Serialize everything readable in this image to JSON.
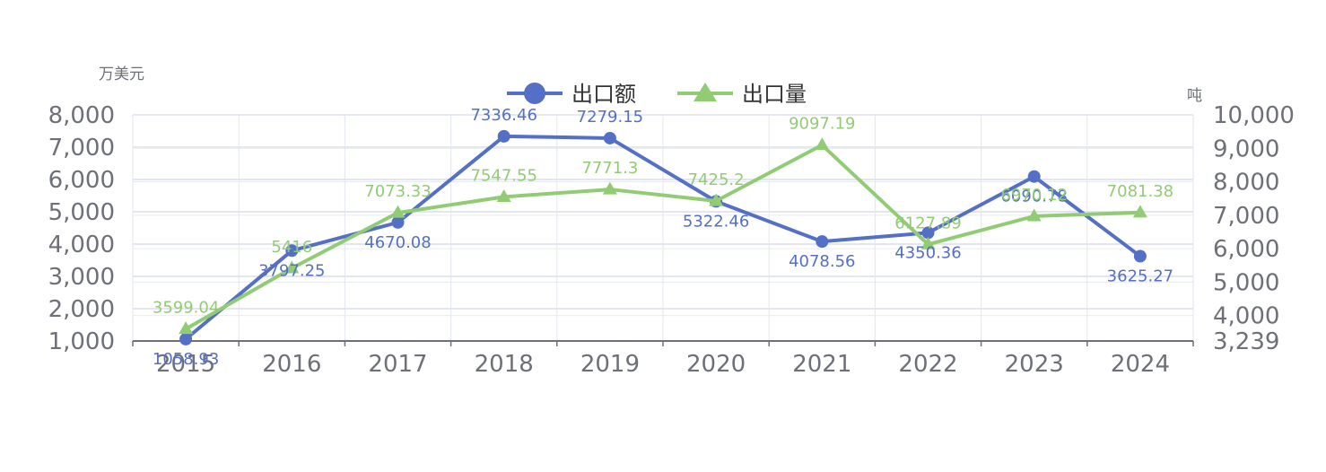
{
  "chart_data": {
    "type": "line",
    "categories": [
      "2015",
      "2016",
      "2017",
      "2018",
      "2019",
      "2020",
      "2021",
      "2022",
      "2023",
      "2024"
    ],
    "y_left": {
      "unit": "万美元",
      "min": 1000,
      "max": 8000,
      "ticks": [
        1000,
        2000,
        3000,
        4000,
        5000,
        6000,
        7000,
        8000
      ]
    },
    "y_right": {
      "unit": "吨",
      "min": 3239,
      "max": 10000,
      "ticks": [
        3239,
        4000,
        5000,
        6000,
        7000,
        8000,
        9000,
        10000
      ]
    },
    "legend_position": "top-center",
    "grid": true,
    "series": [
      {
        "name": "出口额",
        "axis": "left",
        "marker": "circle",
        "color": "#5470c6",
        "values": [
          1058.93,
          3797.25,
          4670.08,
          7336.46,
          7279.15,
          5322.46,
          4078.56,
          4350.36,
          6090.78,
          3625.27
        ],
        "labels": [
          "1058.93",
          "3797.25",
          "4670.08",
          "7336.46",
          "7279.15",
          "5322.46",
          "4078.56",
          "4350.36",
          "6090.78",
          "3625.27"
        ]
      },
      {
        "name": "出口量",
        "axis": "right",
        "marker": "triangle",
        "color": "#91cc75",
        "values": [
          3599.04,
          5416,
          7073.33,
          7547.55,
          7771.3,
          7425.2,
          9097.19,
          6127.89,
          6970.12,
          7081.38
        ],
        "labels": [
          "3599.04",
          "5416",
          "7073.33",
          "7547.55",
          "7771.3",
          "7425.2",
          "9097.19",
          "6127.89",
          "6970.12",
          "7081.38"
        ]
      }
    ]
  }
}
